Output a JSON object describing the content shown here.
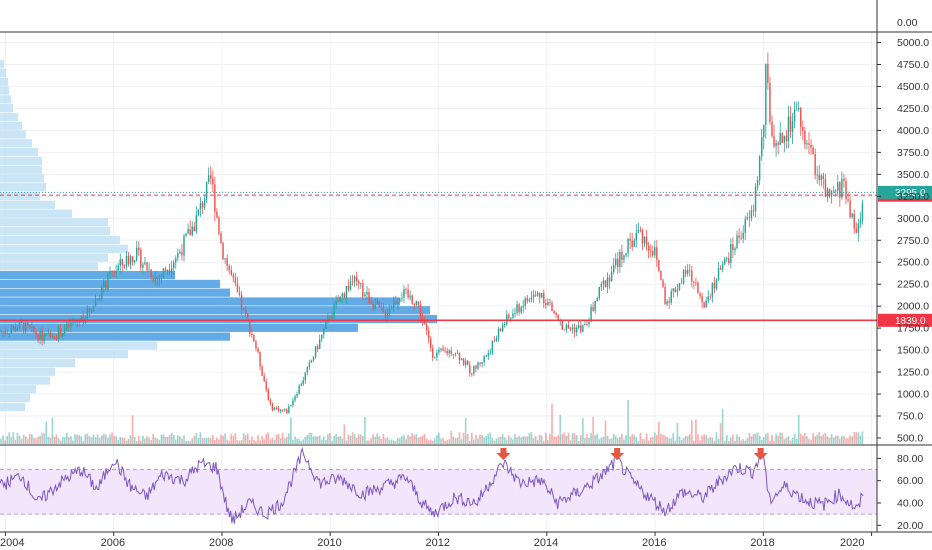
{
  "chart_data": {
    "type": "candlestick",
    "top_pane_ticks": [
      "0.00"
    ],
    "price_axis": {
      "ylim": [
        420,
        5120
      ],
      "ticks": [
        "500.0",
        "750.0",
        "1000.0",
        "1250.0",
        "1500.0",
        "1750.0",
        "2000.0",
        "2250.0",
        "2500.0",
        "2750.0",
        "3000.0",
        "3250.0",
        "3500.0",
        "3750.0",
        "4000.0",
        "4250.0",
        "4500.0",
        "4750.0",
        "5000.0"
      ]
    },
    "x_axis": {
      "xlim": [
        2003.9,
        2020.1
      ],
      "ticks": [
        "2004",
        "2006",
        "2008",
        "2010",
        "2012",
        "2014",
        "2016",
        "2018",
        "2020"
      ]
    },
    "price_path": [
      [
        2003.9,
        1700
      ],
      [
        2004.3,
        1780
      ],
      [
        2004.7,
        1640
      ],
      [
        2005.0,
        1700
      ],
      [
        2005.5,
        1900
      ],
      [
        2006.0,
        2400
      ],
      [
        2006.4,
        2600
      ],
      [
        2006.8,
        2300
      ],
      [
        2007.2,
        2600
      ],
      [
        2007.5,
        2950
      ],
      [
        2007.8,
        3450
      ],
      [
        2008.0,
        2650
      ],
      [
        2008.3,
        2100
      ],
      [
        2008.6,
        1600
      ],
      [
        2008.9,
        850
      ],
      [
        2009.2,
        800
      ],
      [
        2009.6,
        1300
      ],
      [
        2010.0,
        1900
      ],
      [
        2010.4,
        2300
      ],
      [
        2010.7,
        2100
      ],
      [
        2011.0,
        1900
      ],
      [
        2011.3,
        2150
      ],
      [
        2011.6,
        2050
      ],
      [
        2011.9,
        1450
      ],
      [
        2012.3,
        1500
      ],
      [
        2012.6,
        1250
      ],
      [
        2012.9,
        1450
      ],
      [
        2013.2,
        1800
      ],
      [
        2013.6,
        2050
      ],
      [
        2013.9,
        2150
      ],
      [
        2014.3,
        1750
      ],
      [
        2014.7,
        1750
      ],
      [
        2015.0,
        2200
      ],
      [
        2015.4,
        2600
      ],
      [
        2015.7,
        2850
      ],
      [
        2016.0,
        2600
      ],
      [
        2016.2,
        2050
      ],
      [
        2016.6,
        2400
      ],
      [
        2016.9,
        2050
      ],
      [
        2017.3,
        2500
      ],
      [
        2017.6,
        2850
      ],
      [
        2017.8,
        3050
      ],
      [
        2018.0,
        4000
      ],
      [
        2018.05,
        4650
      ],
      [
        2018.2,
        3700
      ],
      [
        2018.6,
        4200
      ],
      [
        2018.9,
        3700
      ],
      [
        2019.2,
        3200
      ],
      [
        2019.5,
        3400
      ],
      [
        2019.7,
        2800
      ],
      [
        2019.9,
        3300
      ]
    ],
    "volume_profile": [
      {
        "price": 4750,
        "width": 4
      },
      {
        "price": 4650,
        "width": 6
      },
      {
        "price": 4550,
        "width": 8
      },
      {
        "price": 4450,
        "width": 9
      },
      {
        "price": 4350,
        "width": 11
      },
      {
        "price": 4250,
        "width": 13
      },
      {
        "price": 4150,
        "width": 18
      },
      {
        "price": 4050,
        "width": 22
      },
      {
        "price": 3950,
        "width": 26
      },
      {
        "price": 3850,
        "width": 32
      },
      {
        "price": 3750,
        "width": 38
      },
      {
        "price": 3650,
        "width": 42
      },
      {
        "price": 3550,
        "width": 42
      },
      {
        "price": 3450,
        "width": 44
      },
      {
        "price": 3350,
        "width": 46
      },
      {
        "price": 3250,
        "width": 40
      },
      {
        "price": 3150,
        "width": 55
      },
      {
        "price": 3050,
        "width": 72
      },
      {
        "price": 2950,
        "width": 108
      },
      {
        "price": 2850,
        "width": 110
      },
      {
        "price": 2750,
        "width": 120
      },
      {
        "price": 2650,
        "width": 128
      },
      {
        "price": 2550,
        "width": 108
      },
      {
        "price": 2450,
        "width": 98
      },
      {
        "price": 2350,
        "width": 175
      },
      {
        "price": 2250,
        "width": 220
      },
      {
        "price": 2150,
        "width": 230
      },
      {
        "price": 2050,
        "width": 400
      },
      {
        "price": 1950,
        "width": 430
      },
      {
        "price": 1850,
        "width": 437
      },
      {
        "price": 1750,
        "width": 358
      },
      {
        "price": 1650,
        "width": 230
      },
      {
        "price": 1550,
        "width": 157
      },
      {
        "price": 1450,
        "width": 128
      },
      {
        "price": 1350,
        "width": 75
      },
      {
        "price": 1250,
        "width": 55
      },
      {
        "price": 1150,
        "width": 50
      },
      {
        "price": 1050,
        "width": 36
      },
      {
        "price": 950,
        "width": 30
      },
      {
        "price": 850,
        "width": 25
      }
    ],
    "poc_price": 1850,
    "horizontal_lines": [
      {
        "price": 1839.0,
        "label": "1839.0",
        "color": "#f23645",
        "style": "solid"
      },
      {
        "price": 3263.0,
        "label": "3263.0",
        "color": "#f23645",
        "style": "dashed"
      },
      {
        "price": 3295.0,
        "label": "3295.0",
        "color": "#26a69a",
        "style": "dotted"
      }
    ],
    "rsi": {
      "ylim": [
        14,
        92
      ],
      "ticks": [
        "80.00",
        "60.00",
        "40.00",
        "20.00"
      ],
      "upper_band": 70,
      "lower_band": 30,
      "path": [
        [
          2003.9,
          55
        ],
        [
          2004.3,
          65
        ],
        [
          2004.6,
          40
        ],
        [
          2005.0,
          58
        ],
        [
          2005.4,
          70
        ],
        [
          2005.7,
          52
        ],
        [
          2006.0,
          80
        ],
        [
          2006.3,
          55
        ],
        [
          2006.6,
          45
        ],
        [
          2006.9,
          66
        ],
        [
          2007.3,
          60
        ],
        [
          2007.6,
          75
        ],
        [
          2007.9,
          72
        ],
        [
          2008.1,
          35
        ],
        [
          2008.2,
          24
        ],
        [
          2008.5,
          40
        ],
        [
          2008.8,
          30
        ],
        [
          2009.1,
          40
        ],
        [
          2009.5,
          85
        ],
        [
          2009.8,
          58
        ],
        [
          2010.2,
          62
        ],
        [
          2010.6,
          48
        ],
        [
          2011.0,
          55
        ],
        [
          2011.4,
          63
        ],
        [
          2011.7,
          40
        ],
        [
          2011.9,
          30
        ],
        [
          2012.3,
          45
        ],
        [
          2012.7,
          40
        ],
        [
          2013.0,
          62
        ],
        [
          2013.2,
          76
        ],
        [
          2013.5,
          58
        ],
        [
          2013.9,
          60
        ],
        [
          2014.2,
          40
        ],
        [
          2014.6,
          50
        ],
        [
          2015.0,
          64
        ],
        [
          2015.3,
          78
        ],
        [
          2015.6,
          58
        ],
        [
          2015.9,
          45
        ],
        [
          2016.2,
          33
        ],
        [
          2016.5,
          50
        ],
        [
          2016.9,
          45
        ],
        [
          2017.2,
          60
        ],
        [
          2017.5,
          72
        ],
        [
          2017.8,
          68
        ],
        [
          2018.0,
          86
        ],
        [
          2018.1,
          42
        ],
        [
          2018.4,
          55
        ],
        [
          2018.8,
          42
        ],
        [
          2019.1,
          38
        ],
        [
          2019.4,
          48
        ],
        [
          2019.6,
          40
        ],
        [
          2019.75,
          33
        ],
        [
          2019.9,
          60
        ]
      ]
    },
    "overbought_arrows": [
      2013.2,
      2015.3,
      2017.95
    ],
    "colors": {
      "up": "#26a69a",
      "down": "#ef5350",
      "profile_light": "#bfe0f5",
      "profile_dark": "#5aa6e6",
      "rsi_line": "#7e57c2",
      "rsi_fill": "#f3e5fb",
      "arrow": "#e8563f",
      "grid": "#eef0f4"
    }
  }
}
